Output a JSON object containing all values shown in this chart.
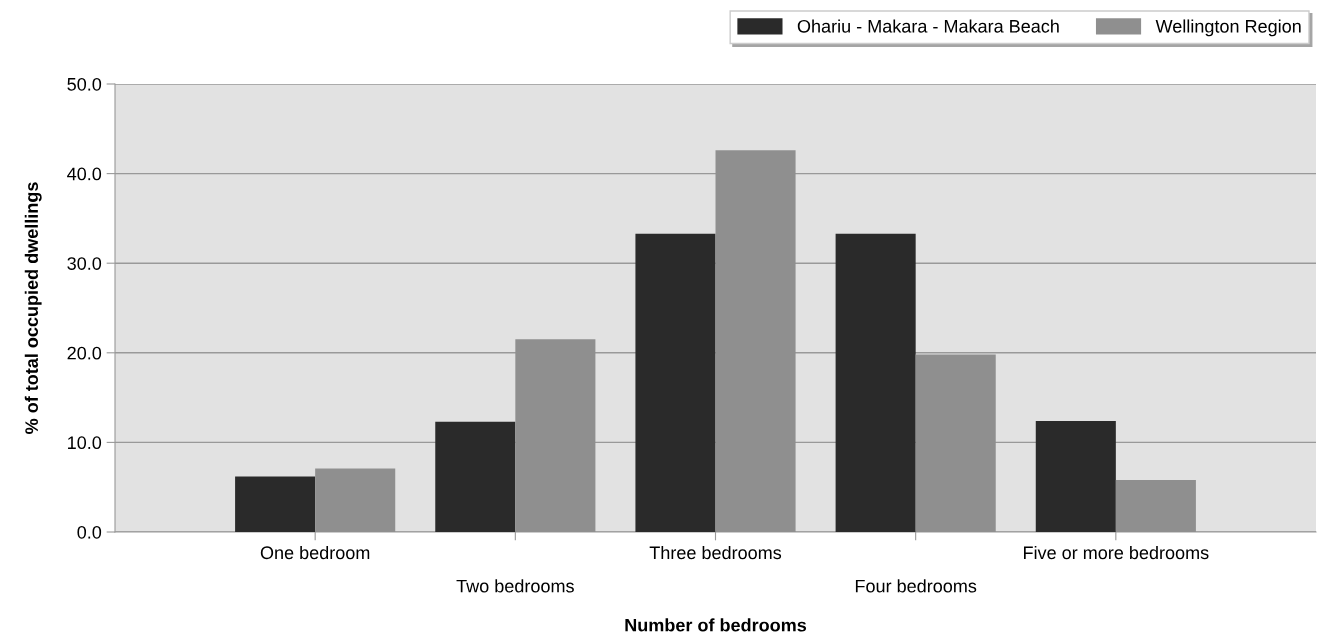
{
  "chart_data": {
    "type": "bar",
    "xlabel": "Number of bedrooms",
    "ylabel": "% of total occupied dwellings",
    "categories": [
      "One bedroom",
      "Two bedrooms",
      "Three bedrooms",
      "Four bedrooms",
      "Five or more bedrooms"
    ],
    "series": [
      {
        "name": "Ohariu - Makara - Makara Beach",
        "color": "#2a2a2a",
        "values": [
          6.2,
          12.3,
          33.3,
          33.3,
          12.4
        ]
      },
      {
        "name": "Wellington Region",
        "color": "#8f8f8f",
        "values": [
          7.1,
          21.5,
          42.6,
          19.8,
          5.8
        ]
      }
    ],
    "ylim": [
      0,
      50
    ],
    "yticks": [
      {
        "value": 0,
        "label": "0.0"
      },
      {
        "value": 10,
        "label": "10.0"
      },
      {
        "value": 20,
        "label": "20.0"
      },
      {
        "value": 30,
        "label": "30.0"
      },
      {
        "value": 40,
        "label": "40.0"
      },
      {
        "value": 50,
        "label": "50.0"
      }
    ],
    "grid": "y",
    "legend": "top right"
  }
}
